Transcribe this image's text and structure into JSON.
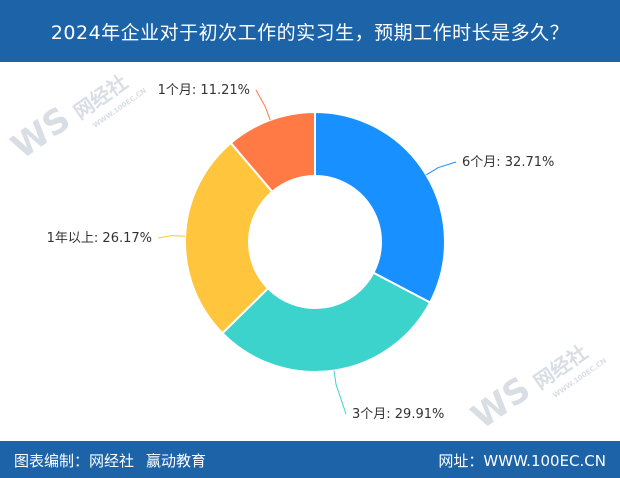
{
  "title": "2024年企业对于初次工作的实习生，预期工作时长是多久？",
  "footer": {
    "credit_label": "图表编制：",
    "credit_org1": "网经社",
    "credit_org2": "赢动教育",
    "site_label": "网址：",
    "site_url": "WWW.100EC.CN"
  },
  "watermark": {
    "brand": "网经社",
    "domain": "WWW.100EC.CN"
  },
  "chart_data": {
    "type": "pie",
    "donut": true,
    "categories": [
      "6个月",
      "3个月",
      "1年以上",
      "1个月"
    ],
    "values": [
      32.71,
      29.91,
      26.17,
      11.21
    ],
    "labels": [
      "6个月: 32.71%",
      "3个月: 29.91%",
      "1年以上: 26.17%",
      "1个月: 11.21%"
    ],
    "colors": [
      "#1890ff",
      "#3dd3cd",
      "#ffc53d",
      "#ff7a45"
    ],
    "legend": "none"
  }
}
